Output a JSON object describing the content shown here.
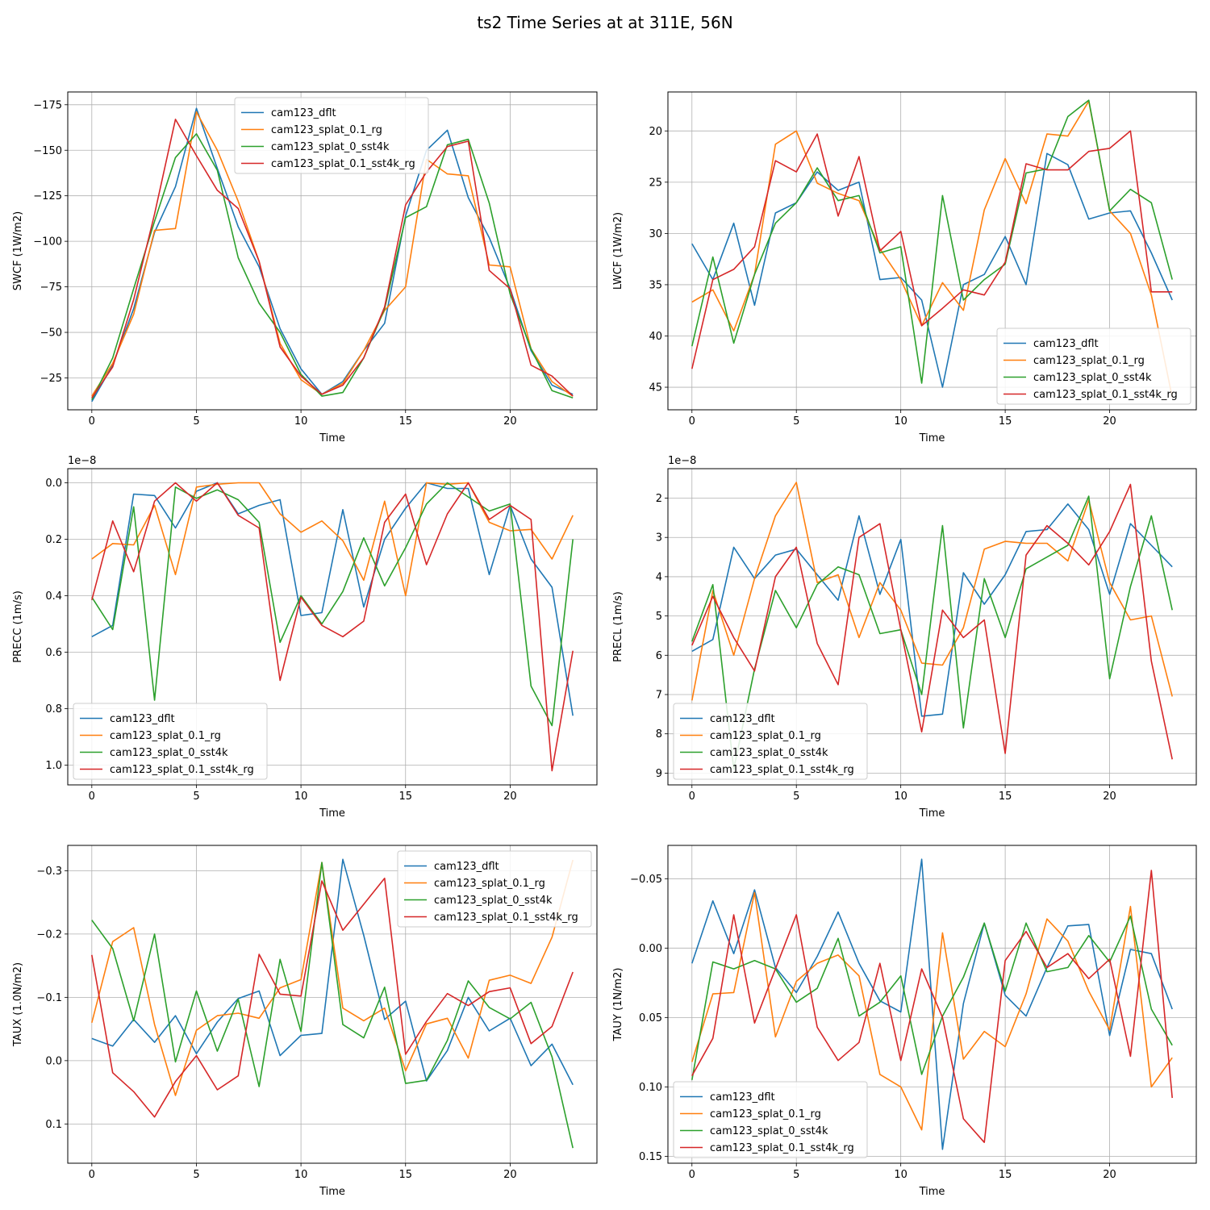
{
  "figure": {
    "title": "ts2 Time Series at at 311E, 56N"
  },
  "colors": {
    "cam123_dflt": "#1f77b4",
    "cam123_splat_0.1_rg": "#ff7f0e",
    "cam123_splat_0_sst4k": "#2ca02c",
    "cam123_splat_0.1_sst4k_rg": "#d62728"
  },
  "chart_data": [
    {
      "type": "line",
      "title": "",
      "xlabel": "Time",
      "ylabel": "SWCF (1W/m2)",
      "xlim": [
        -1.15,
        24.15
      ],
      "ylim": [
        -7.5,
        -182
      ],
      "y_inverted": true,
      "xticks": [
        0,
        5,
        10,
        15,
        20
      ],
      "xtick_labels": [
        "0",
        "5",
        "10",
        "15",
        "20"
      ],
      "yticks": [
        -25,
        -50,
        -75,
        -100,
        -125,
        -150,
        -175
      ],
      "ytick_labels": [
        "−25",
        "−50",
        "−75",
        "−100",
        "−125",
        "−150",
        "−175"
      ],
      "offset_label": "",
      "grid": true,
      "legend": "upper-center",
      "x": [
        0,
        1,
        2,
        3,
        4,
        5,
        6,
        7,
        8,
        9,
        10,
        11,
        12,
        13,
        14,
        15,
        16,
        17,
        18,
        19,
        20,
        21,
        22,
        23
      ],
      "series": [
        {
          "name": "cam123_dflt",
          "values": [
            -12,
            -32,
            -63,
            -105,
            -130,
            -173,
            -140,
            -108,
            -86,
            -52,
            -30,
            -16,
            -23,
            -40,
            -55,
            -114,
            -150,
            -161,
            -124,
            -102,
            -74,
            -40,
            -21,
            -16
          ]
        },
        {
          "name": "cam123_splat_0.1_rg",
          "values": [
            -15,
            -33,
            -60,
            -106,
            -107,
            -171,
            -150,
            -122,
            -89,
            -44,
            -24,
            -16,
            -22,
            -40,
            -62,
            -75,
            -145,
            -137,
            -136,
            -87,
            -86,
            -41,
            -23,
            -15
          ]
        },
        {
          "name": "cam123_splat_0_sst4k",
          "values": [
            -13,
            -36,
            -74,
            -111,
            -146,
            -159,
            -139,
            -91,
            -66,
            -50,
            -27,
            -15,
            -17,
            -36,
            -63,
            -113,
            -119,
            -153,
            -156,
            -121,
            -71,
            -41,
            -18,
            -14
          ]
        },
        {
          "name": "cam123_splat_0.1_sst4k_rg",
          "values": [
            -14,
            -31,
            -68,
            -115,
            -167,
            -147,
            -128,
            -118,
            -89,
            -42,
            -26,
            -16,
            -21,
            -36,
            -64,
            -120,
            -138,
            -152,
            -155,
            -84,
            -74,
            -32,
            -26,
            -15
          ]
        }
      ]
    },
    {
      "type": "line",
      "title": "",
      "xlabel": "Time",
      "ylabel": "LWCF (1W/m2)",
      "xlim": [
        -1.15,
        24.15
      ],
      "ylim": [
        47.2,
        16.2
      ],
      "y_inverted": true,
      "xticks": [
        0,
        5,
        10,
        15,
        20
      ],
      "xtick_labels": [
        "0",
        "5",
        "10",
        "15",
        "20"
      ],
      "yticks": [
        20,
        25,
        30,
        35,
        40,
        45
      ],
      "ytick_labels": [
        "20",
        "25",
        "30",
        "35",
        "40",
        "45"
      ],
      "offset_label": "",
      "grid": true,
      "legend": "lower-right",
      "x": [
        0,
        1,
        2,
        3,
        4,
        5,
        6,
        7,
        8,
        9,
        10,
        11,
        12,
        13,
        14,
        15,
        16,
        17,
        18,
        19,
        20,
        21,
        22,
        23
      ],
      "series": [
        {
          "name": "cam123_dflt",
          "values": [
            31,
            34.5,
            29,
            37,
            28,
            27,
            24,
            25.8,
            25,
            34.5,
            34.3,
            36.5,
            45,
            35,
            34,
            30.3,
            35,
            22.2,
            23.3,
            28.6,
            28,
            27.8,
            31.9,
            36.5
          ]
        },
        {
          "name": "cam123_splat_0.1_rg",
          "values": [
            36.7,
            35.5,
            39.5,
            34,
            21.3,
            20,
            25.1,
            26.1,
            26.8,
            31.5,
            34.5,
            39,
            34.8,
            37.5,
            27.7,
            22.7,
            27.1,
            20.3,
            20.5,
            17.1,
            27.8,
            30,
            36,
            46
          ]
        },
        {
          "name": "cam123_splat_0_sst4k",
          "values": [
            41,
            32.3,
            40.7,
            34,
            29,
            27,
            23.6,
            26.8,
            26.3,
            31.9,
            31.3,
            44.6,
            26.3,
            36.5,
            34.5,
            33,
            24.1,
            23.7,
            18.6,
            17,
            27.8,
            25.7,
            27,
            34.5
          ]
        },
        {
          "name": "cam123_splat_0.1_sst4k_rg",
          "values": [
            43.2,
            34.5,
            33.5,
            31.3,
            22.9,
            24,
            20.3,
            28.3,
            22.5,
            31.7,
            29.8,
            39,
            37.3,
            35.5,
            36,
            32.8,
            23.2,
            23.8,
            23.8,
            22,
            21.7,
            20,
            35.7,
            35.7
          ]
        }
      ]
    },
    {
      "type": "line",
      "title": "",
      "xlabel": "Time",
      "ylabel": "PRECC (1m/s)",
      "xlim": [
        -1.15,
        24.15
      ],
      "ylim": [
        1.07,
        -0.05
      ],
      "y_inverted": true,
      "xticks": [
        0,
        5,
        10,
        15,
        20
      ],
      "xtick_labels": [
        "0",
        "5",
        "10",
        "15",
        "20"
      ],
      "yticks": [
        0,
        0.2,
        0.4,
        0.6,
        0.8,
        1.0
      ],
      "ytick_labels": [
        "0.0",
        "0.2",
        "0.4",
        "0.6",
        "0.8",
        "1.0"
      ],
      "offset_label": "1e−8",
      "grid": true,
      "legend": "lower-left",
      "x": [
        0,
        1,
        2,
        3,
        4,
        5,
        6,
        7,
        8,
        9,
        10,
        11,
        12,
        13,
        14,
        15,
        16,
        17,
        18,
        19,
        20,
        21,
        22,
        23
      ],
      "series": [
        {
          "name": "cam123_dflt",
          "values": [
            0.545,
            0.505,
            0.04,
            0.045,
            0.16,
            0.03,
            0.0,
            0.11,
            0.08,
            0.06,
            0.47,
            0.46,
            0.095,
            0.44,
            0.2,
            0.09,
            0.0,
            0.02,
            0.02,
            0.325,
            0.08,
            0.27,
            0.37,
            0.825
          ]
        },
        {
          "name": "cam123_splat_0.1_rg",
          "values": [
            0.27,
            0.215,
            0.22,
            0.08,
            0.325,
            0.015,
            0.005,
            0.0,
            0.0,
            0.11,
            0.175,
            0.135,
            0.205,
            0.345,
            0.065,
            0.4,
            0.0,
            0.005,
            0.0,
            0.14,
            0.17,
            0.165,
            0.27,
            0.115
          ]
        },
        {
          "name": "cam123_splat_0_sst4k",
          "values": [
            0.405,
            0.52,
            0.085,
            0.77,
            0.015,
            0.055,
            0.025,
            0.06,
            0.14,
            0.565,
            0.4,
            0.5,
            0.385,
            0.195,
            0.365,
            0.23,
            0.075,
            0.0,
            0.05,
            0.1,
            0.075,
            0.72,
            0.86,
            0.2
          ]
        },
        {
          "name": "cam123_splat_0.1_sst4k_rg",
          "values": [
            0.415,
            0.135,
            0.315,
            0.065,
            0.0,
            0.065,
            0.0,
            0.115,
            0.16,
            0.7,
            0.405,
            0.505,
            0.545,
            0.49,
            0.14,
            0.04,
            0.29,
            0.11,
            0.0,
            0.13,
            0.08,
            0.13,
            1.02,
            0.595
          ]
        }
      ]
    },
    {
      "type": "line",
      "title": "",
      "xlabel": "Time",
      "ylabel": "PRECL (1m/s)",
      "xlim": [
        -1.15,
        24.15
      ],
      "ylim": [
        9.3,
        1.25
      ],
      "y_inverted": true,
      "xticks": [
        0,
        5,
        10,
        15,
        20
      ],
      "xtick_labels": [
        "0",
        "5",
        "10",
        "15",
        "20"
      ],
      "yticks": [
        2,
        3,
        4,
        5,
        6,
        7,
        8,
        9
      ],
      "ytick_labels": [
        "2",
        "3",
        "4",
        "5",
        "6",
        "7",
        "8",
        "9"
      ],
      "offset_label": "1e−8",
      "grid": true,
      "legend": "lower-left",
      "x": [
        0,
        1,
        2,
        3,
        4,
        5,
        6,
        7,
        8,
        9,
        10,
        11,
        12,
        13,
        14,
        15,
        16,
        17,
        18,
        19,
        20,
        21,
        22,
        23
      ],
      "series": [
        {
          "name": "cam123_dflt",
          "values": [
            5.9,
            5.6,
            3.25,
            4.05,
            3.45,
            3.3,
            3.95,
            4.6,
            2.45,
            4.45,
            3.05,
            7.55,
            7.5,
            3.9,
            4.7,
            3.95,
            2.85,
            2.8,
            2.15,
            2.8,
            4.45,
            2.65,
            3.2,
            3.75
          ]
        },
        {
          "name": "cam123_splat_0.1_rg",
          "values": [
            7.15,
            4.35,
            6.0,
            4.05,
            2.45,
            1.6,
            4.15,
            3.95,
            5.55,
            4.15,
            4.85,
            6.2,
            6.25,
            5.3,
            3.3,
            3.1,
            3.15,
            3.15,
            3.6,
            2.05,
            4.15,
            5.1,
            5.0,
            7.05
          ]
        },
        {
          "name": "cam123_splat_0_sst4k",
          "values": [
            5.65,
            4.2,
            8.9,
            6.35,
            4.35,
            5.3,
            4.2,
            3.75,
            3.95,
            5.45,
            5.35,
            7.0,
            2.7,
            7.85,
            4.05,
            5.55,
            3.8,
            3.5,
            3.2,
            1.95,
            6.6,
            4.25,
            2.45,
            4.85
          ]
        },
        {
          "name": "cam123_splat_0.1_sst4k_rg",
          "values": [
            5.75,
            4.5,
            5.55,
            6.4,
            4.0,
            3.25,
            5.7,
            6.75,
            3.0,
            2.65,
            5.35,
            7.95,
            4.85,
            5.55,
            5.1,
            8.5,
            3.45,
            2.7,
            3.15,
            3.7,
            2.85,
            1.65,
            6.15,
            8.65
          ]
        }
      ]
    },
    {
      "type": "line",
      "title": "",
      "xlabel": "Time",
      "ylabel": "TAUX (1.0N/m2)",
      "xlim": [
        -1.15,
        24.15
      ],
      "ylim": [
        0.162,
        -0.34
      ],
      "y_inverted": true,
      "xticks": [
        0,
        5,
        10,
        15,
        20
      ],
      "xtick_labels": [
        "0",
        "5",
        "10",
        "15",
        "20"
      ],
      "yticks": [
        0.1,
        0.0,
        -0.1,
        -0.2,
        -0.3
      ],
      "ytick_labels": [
        "0.1",
        "0.0",
        "−0.1",
        "−0.2",
        "−0.3"
      ],
      "offset_label": "",
      "grid": true,
      "legend": "upper-right",
      "x": [
        0,
        1,
        2,
        3,
        4,
        5,
        6,
        7,
        8,
        9,
        10,
        11,
        12,
        13,
        14,
        15,
        16,
        17,
        18,
        19,
        20,
        21,
        22,
        23
      ],
      "series": [
        {
          "name": "cam123_dflt",
          "values": [
            -0.035,
            -0.023,
            -0.065,
            -0.029,
            -0.071,
            -0.011,
            -0.061,
            -0.098,
            -0.11,
            -0.008,
            -0.04,
            -0.043,
            -0.318,
            -0.198,
            -0.065,
            -0.094,
            0.032,
            -0.016,
            -0.1,
            -0.047,
            -0.067,
            0.008,
            -0.026,
            0.038
          ]
        },
        {
          "name": "cam123_splat_0.1_rg",
          "values": [
            -0.06,
            -0.188,
            -0.21,
            -0.057,
            0.055,
            -0.048,
            -0.071,
            -0.075,
            -0.067,
            -0.115,
            -0.128,
            -0.313,
            -0.083,
            -0.063,
            -0.083,
            0.016,
            -0.058,
            -0.067,
            -0.004,
            -0.127,
            -0.135,
            -0.122,
            -0.195,
            -0.317
          ]
        },
        {
          "name": "cam123_splat_0_sst4k",
          "values": [
            -0.222,
            -0.177,
            -0.063,
            -0.2,
            0.002,
            -0.11,
            -0.015,
            -0.097,
            0.041,
            -0.16,
            -0.046,
            -0.313,
            -0.057,
            -0.036,
            -0.116,
            0.036,
            0.031,
            -0.032,
            -0.126,
            -0.084,
            -0.066,
            -0.092,
            -0.006,
            0.138
          ]
        },
        {
          "name": "cam123_splat_0.1_sst4k_rg",
          "values": [
            -0.167,
            0.019,
            0.049,
            0.089,
            0.033,
            -0.008,
            0.046,
            0.024,
            -0.168,
            -0.105,
            -0.102,
            -0.284,
            -0.206,
            -0.247,
            -0.288,
            -0.01,
            -0.062,
            -0.106,
            -0.087,
            -0.109,
            -0.115,
            -0.027,
            -0.054,
            -0.14
          ]
        }
      ]
    },
    {
      "type": "line",
      "title": "",
      "xlabel": "Time",
      "ylabel": "TAUY (1N/m2)",
      "xlim": [
        -1.15,
        24.15
      ],
      "ylim": [
        0.155,
        -0.074
      ],
      "y_inverted": true,
      "xticks": [
        0,
        5,
        10,
        15,
        20
      ],
      "xtick_labels": [
        "0",
        "5",
        "10",
        "15",
        "20"
      ],
      "yticks": [
        -0.05,
        0.0,
        0.05,
        0.1,
        0.15
      ],
      "ytick_labels": [
        "−0.05",
        "0.00",
        "0.05",
        "0.10",
        "0.15"
      ],
      "offset_label": "",
      "grid": true,
      "legend": "lower-left",
      "x": [
        0,
        1,
        2,
        3,
        4,
        5,
        6,
        7,
        8,
        9,
        10,
        11,
        12,
        13,
        14,
        15,
        16,
        17,
        18,
        19,
        20,
        21,
        22,
        23
      ],
      "series": [
        {
          "name": "cam123_dflt",
          "values": [
            0.011,
            -0.034,
            0.004,
            -0.042,
            0.014,
            0.032,
            0.006,
            -0.026,
            0.011,
            0.038,
            0.046,
            -0.064,
            0.145,
            0.04,
            -0.018,
            0.034,
            0.049,
            0.014,
            -0.016,
            -0.017,
            0.063,
            0.001,
            0.004,
            0.044
          ]
        },
        {
          "name": "cam123_splat_0.1_rg",
          "values": [
            0.082,
            0.033,
            0.032,
            -0.04,
            0.064,
            0.024,
            0.011,
            0.005,
            0.02,
            0.091,
            0.1,
            0.131,
            -0.011,
            0.08,
            0.06,
            0.071,
            0.033,
            -0.021,
            -0.005,
            0.031,
            0.059,
            -0.03,
            0.1,
            0.079
          ]
        },
        {
          "name": "cam123_splat_0_sst4k",
          "values": [
            0.095,
            0.01,
            0.015,
            0.009,
            0.015,
            0.039,
            0.029,
            -0.007,
            0.049,
            0.039,
            0.02,
            0.091,
            0.049,
            0.021,
            -0.018,
            0.031,
            -0.018,
            0.017,
            0.014,
            -0.009,
            0.01,
            -0.023,
            0.044,
            0.07
          ]
        },
        {
          "name": "cam123_splat_0.1_sst4k_rg",
          "values": [
            0.092,
            0.065,
            -0.024,
            0.054,
            0.015,
            -0.024,
            0.057,
            0.081,
            0.068,
            0.011,
            0.081,
            0.015,
            0.05,
            0.123,
            0.14,
            0.009,
            -0.012,
            0.014,
            0.004,
            0.022,
            0.008,
            0.078,
            -0.056,
            0.108
          ]
        }
      ]
    }
  ]
}
